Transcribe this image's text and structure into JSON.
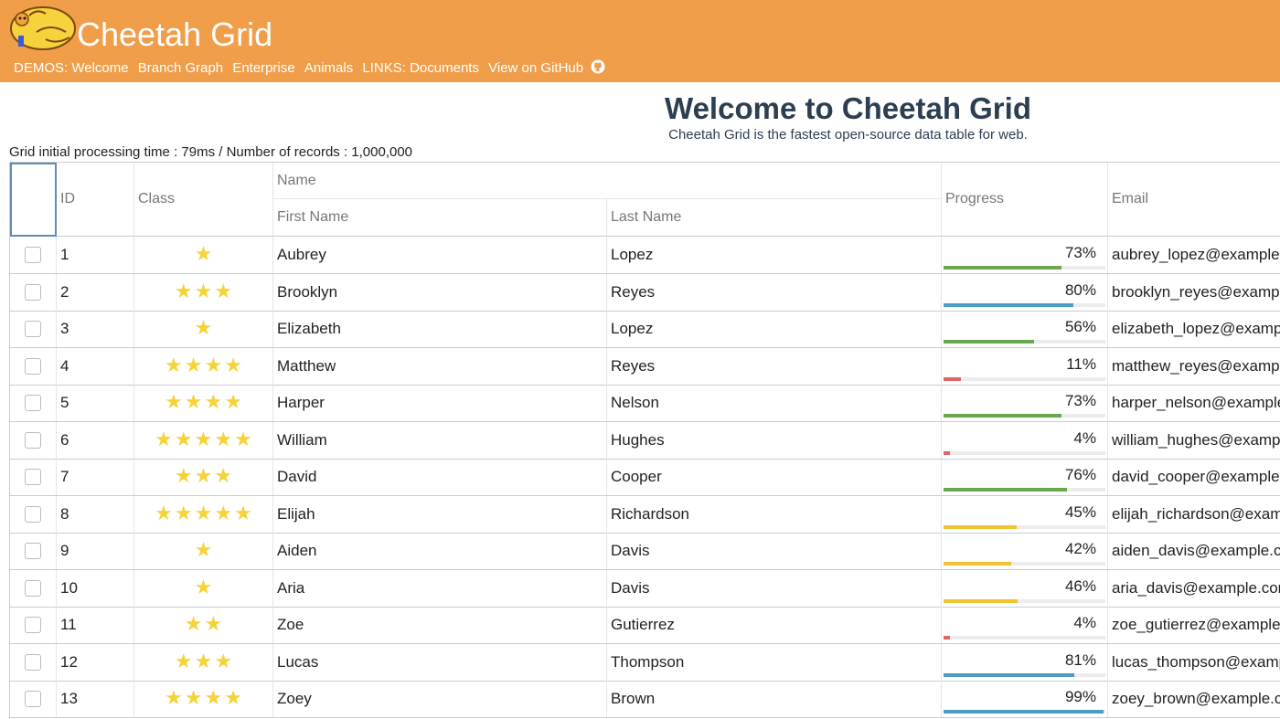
{
  "header": {
    "brand": "Cheetah Grid",
    "logo_text": "Cheetah Grid",
    "nav": [
      "DEMOS: Welcome",
      "Branch Graph",
      "Enterprise",
      "Animals",
      "LINKS: Documents",
      "View on GitHub"
    ],
    "github_icon": "github-icon"
  },
  "page": {
    "title": "Welcome to Cheetah Grid",
    "subtitle": "Cheetah Grid is the fastest open-source data table for web.",
    "perf_info": "Grid initial processing time : 79ms / Number of records : 1,000,000"
  },
  "colors": {
    "header_bg": "#f19e4a",
    "star": "#f5d33c",
    "bar_red": "#e06666",
    "bar_yellow": "#f1c232",
    "bar_green": "#6aa84f",
    "bar_blue": "#4a9fc1"
  },
  "grid": {
    "headers": {
      "id": "ID",
      "class": "Class",
      "name_group": "Name",
      "first_name": "First Name",
      "last_name": "Last Name",
      "progress": "Progress",
      "email": "Email"
    },
    "rows": [
      {
        "id": "1",
        "stars": 1,
        "first": "Aubrey",
        "last": "Lopez",
        "progress": 73,
        "pct": "73%",
        "email": "aubrey_lopez@example.com"
      },
      {
        "id": "2",
        "stars": 3,
        "first": "Brooklyn",
        "last": "Reyes",
        "progress": 80,
        "pct": "80%",
        "email": "brooklyn_reyes@example.com"
      },
      {
        "id": "3",
        "stars": 1,
        "first": "Elizabeth",
        "last": "Lopez",
        "progress": 56,
        "pct": "56%",
        "email": "elizabeth_lopez@example.com"
      },
      {
        "id": "4",
        "stars": 4,
        "first": "Matthew",
        "last": "Reyes",
        "progress": 11,
        "pct": "11%",
        "email": "matthew_reyes@example.com"
      },
      {
        "id": "5",
        "stars": 4,
        "first": "Harper",
        "last": "Nelson",
        "progress": 73,
        "pct": "73%",
        "email": "harper_nelson@example.com"
      },
      {
        "id": "6",
        "stars": 5,
        "first": "William",
        "last": "Hughes",
        "progress": 4,
        "pct": "4%",
        "email": "william_hughes@example.com"
      },
      {
        "id": "7",
        "stars": 3,
        "first": "David",
        "last": "Cooper",
        "progress": 76,
        "pct": "76%",
        "email": "david_cooper@example.com"
      },
      {
        "id": "8",
        "stars": 5,
        "first": "Elijah",
        "last": "Richardson",
        "progress": 45,
        "pct": "45%",
        "email": "elijah_richardson@example.com"
      },
      {
        "id": "9",
        "stars": 1,
        "first": "Aiden",
        "last": "Davis",
        "progress": 42,
        "pct": "42%",
        "email": "aiden_davis@example.com"
      },
      {
        "id": "10",
        "stars": 1,
        "first": "Aria",
        "last": "Davis",
        "progress": 46,
        "pct": "46%",
        "email": "aria_davis@example.com"
      },
      {
        "id": "11",
        "stars": 2,
        "first": "Zoe",
        "last": "Gutierrez",
        "progress": 4,
        "pct": "4%",
        "email": "zoe_gutierrez@example.com"
      },
      {
        "id": "12",
        "stars": 3,
        "first": "Lucas",
        "last": "Thompson",
        "progress": 81,
        "pct": "81%",
        "email": "lucas_thompson@example.com"
      },
      {
        "id": "13",
        "stars": 4,
        "first": "Zoey",
        "last": "Brown",
        "progress": 99,
        "pct": "99%",
        "email": "zoey_brown@example.com"
      }
    ]
  }
}
